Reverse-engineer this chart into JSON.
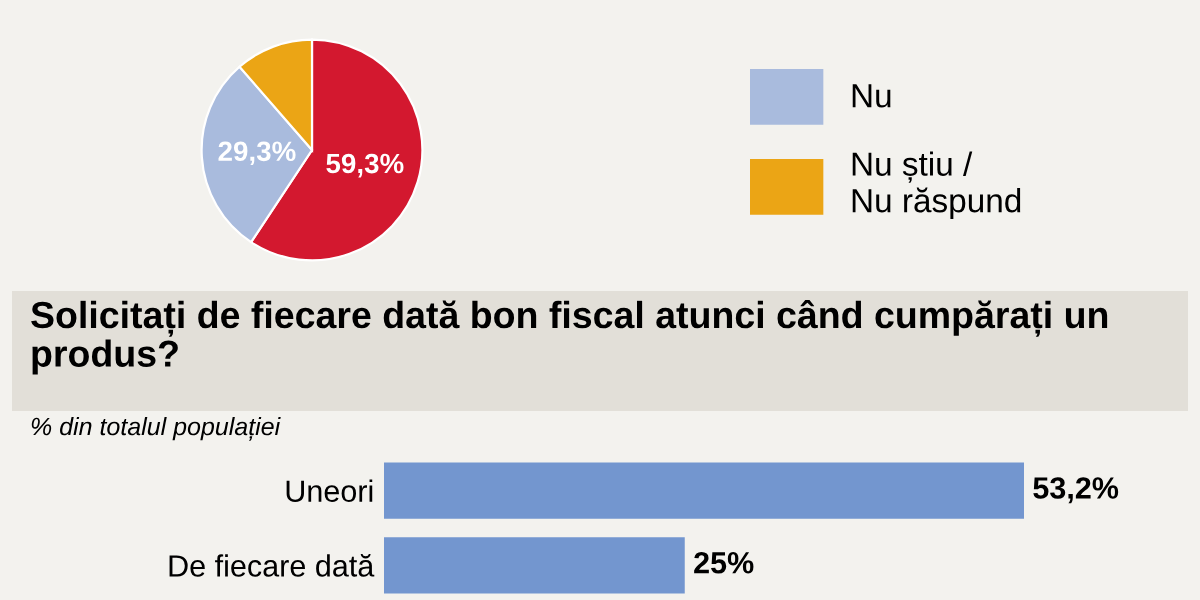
{
  "chart_data": [
    {
      "type": "pie",
      "categories": [
        null,
        "Nu",
        "Nu știu / Nu răspund"
      ],
      "values": [
        59.3,
        29.3,
        11.4
      ],
      "colors": [
        "#d3182f",
        "#a9bbdd",
        "#eba515"
      ],
      "value_labels": [
        "59,3%",
        "29,3%",
        null
      ],
      "legend": "right"
    },
    {
      "type": "bar",
      "orientation": "horizontal",
      "title": "Solicitați de fiecare dată bon fiscal atunci când cumpărați un produs?",
      "subtitle": "% din totalul populației",
      "categories": [
        "Uneori",
        "De fiecare dată"
      ],
      "values": [
        53.2,
        25
      ],
      "color": "#7396cf",
      "value_labels": [
        "53,2%",
        "25%"
      ]
    }
  ]
}
